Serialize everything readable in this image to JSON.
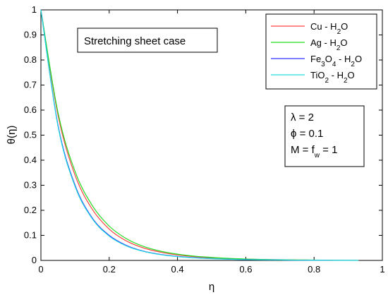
{
  "chart_data": {
    "type": "line",
    "xlabel": "η",
    "ylabel": "θ(η)",
    "xlim": [
      0,
      1
    ],
    "ylim": [
      0,
      1
    ],
    "x_ticks": [
      "0",
      "0.2",
      "0.4",
      "0.6",
      "0.8",
      "1"
    ],
    "y_ticks": [
      "0",
      "0.1",
      "0.2",
      "0.3",
      "0.4",
      "0.5",
      "0.6",
      "0.7",
      "0.8",
      "0.9",
      "1"
    ],
    "grid": false,
    "legend_position": "top-right",
    "series": [
      {
        "name": "Cu - H2O",
        "legend_parts": [
          {
            "t": "Cu - H"
          },
          {
            "t": "2",
            "sub": true
          },
          {
            "t": "O"
          }
        ],
        "color": "#ff4444",
        "x": [
          0,
          0.05,
          0.1,
          0.15,
          0.2,
          0.25,
          0.3,
          0.35,
          0.4,
          0.45,
          0.5,
          0.55,
          0.6,
          0.65,
          0.7,
          0.75,
          0.8,
          0.85,
          0.9,
          0.93
        ],
        "y": [
          1.0,
          0.58,
          0.34,
          0.205,
          0.125,
          0.078,
          0.05,
          0.033,
          0.022,
          0.015,
          0.01,
          0.007,
          0.005,
          0.0035,
          0.0025,
          0.0018,
          0.0012,
          0.0008,
          0.0005,
          0.0003
        ]
      },
      {
        "name": "Ag - H2O",
        "legend_parts": [
          {
            "t": "Ag - H"
          },
          {
            "t": "2",
            "sub": true
          },
          {
            "t": "O"
          }
        ],
        "color": "#22dd22",
        "x": [
          0,
          0.05,
          0.1,
          0.15,
          0.2,
          0.25,
          0.3,
          0.35,
          0.4,
          0.45,
          0.5,
          0.55,
          0.6,
          0.65,
          0.7,
          0.75,
          0.8,
          0.85,
          0.9,
          0.93
        ],
        "y": [
          1.0,
          0.59,
          0.355,
          0.22,
          0.137,
          0.087,
          0.056,
          0.037,
          0.025,
          0.017,
          0.012,
          0.008,
          0.0055,
          0.004,
          0.0028,
          0.002,
          0.0014,
          0.0009,
          0.0006,
          0.0004
        ]
      },
      {
        "name": "Fe3O4 - H2O",
        "legend_parts": [
          {
            "t": "Fe"
          },
          {
            "t": "3",
            "sub": true
          },
          {
            "t": "O"
          },
          {
            "t": "4",
            "sub": true
          },
          {
            "t": " - H"
          },
          {
            "t": "2",
            "sub": true
          },
          {
            "t": "O"
          }
        ],
        "color": "#3333ff",
        "x": [
          0,
          0.05,
          0.1,
          0.15,
          0.2,
          0.25,
          0.3,
          0.35,
          0.4,
          0.45,
          0.5,
          0.55,
          0.6,
          0.65,
          0.7,
          0.75,
          0.8,
          0.85,
          0.9,
          0.93
        ],
        "y": [
          1.0,
          0.54,
          0.3,
          0.17,
          0.1,
          0.06,
          0.037,
          0.024,
          0.016,
          0.011,
          0.0075,
          0.005,
          0.0035,
          0.0025,
          0.0018,
          0.0012,
          0.0008,
          0.0005,
          0.0003,
          0.0002
        ]
      },
      {
        "name": "TiO2 - H2O",
        "legend_parts": [
          {
            "t": "TiO"
          },
          {
            "t": "2",
            "sub": true
          },
          {
            "t": " - H"
          },
          {
            "t": "2",
            "sub": true
          },
          {
            "t": "O"
          }
        ],
        "color": "#22dddd",
        "x": [
          0,
          0.05,
          0.1,
          0.15,
          0.2,
          0.25,
          0.3,
          0.35,
          0.4,
          0.45,
          0.5,
          0.55,
          0.6,
          0.65,
          0.7,
          0.75,
          0.8,
          0.85,
          0.9,
          0.93
        ],
        "y": [
          1.0,
          0.535,
          0.295,
          0.167,
          0.097,
          0.058,
          0.036,
          0.023,
          0.015,
          0.01,
          0.007,
          0.0048,
          0.0033,
          0.0023,
          0.0016,
          0.0011,
          0.0007,
          0.0005,
          0.0003,
          0.0002
        ]
      }
    ],
    "annotations": {
      "case_label": "Stretching sheet case",
      "param_lines": [
        [
          {
            "t": "λ = 2"
          }
        ],
        [
          {
            "t": "ϕ = 0.1"
          }
        ],
        [
          {
            "t": "M = f"
          },
          {
            "t": "w",
            "sub": true
          },
          {
            "t": " = 1"
          }
        ]
      ]
    }
  }
}
